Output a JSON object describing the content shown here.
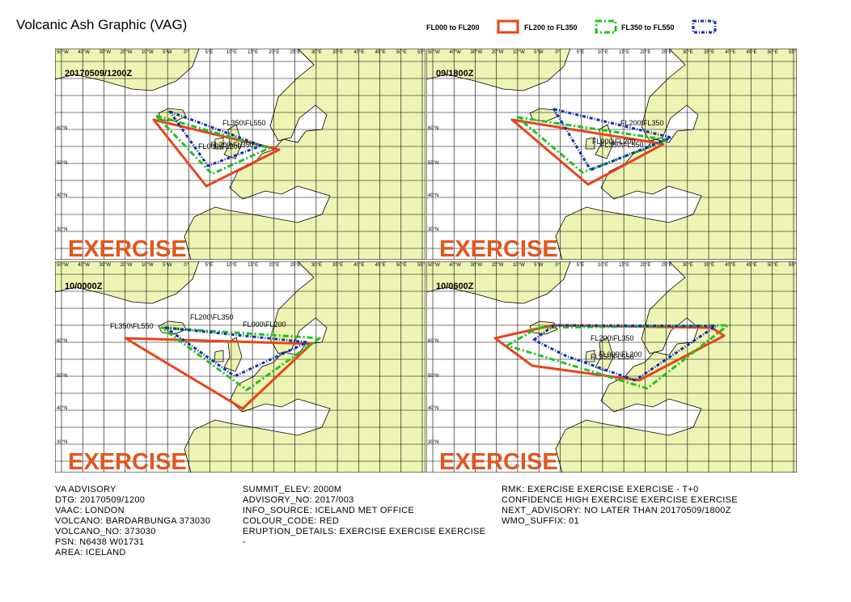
{
  "title": "Volcanic Ash Graphic (VAG)",
  "legend": [
    "FL000 to FL200",
    "FL200 to FL350",
    "FL350 to FL550"
  ],
  "exercise": "EXERCISE",
  "lon_labels": [
    "50°W",
    "40°W",
    "30°W",
    "20°W",
    "10°W",
    "5°W",
    "0°",
    "5°E",
    "10°E",
    "15°E",
    "20°E",
    "25°E",
    "30°E",
    "35°E",
    "40°E",
    "45°E",
    "50°E",
    "55°E"
  ],
  "lat_labels": [
    "60°N",
    "50°N",
    "40°N",
    "30°N"
  ],
  "panels": [
    {
      "time": "20170509/1200Z",
      "polygon_labels": [
        "FL350\\FL550",
        "FL000\\FL200",
        "FL200\\FL350"
      ]
    },
    {
      "time": "09/1800Z",
      "polygon_labels": [
        "FL200\\FL350",
        "FL000\\FL200",
        "FL350\\FL550"
      ]
    },
    {
      "time": "10/0000Z",
      "polygon_labels": [
        "FL200\\FL350",
        "FL350\\FL550",
        "FL000\\FL200"
      ]
    },
    {
      "time": "10/0600Z",
      "polygon_labels": [
        "FL200\\FL350",
        "FL350\\FL550",
        "FL000\\FL200"
      ]
    }
  ],
  "advisory": [
    [
      "VA ADVISORY",
      "DTG: 20170509/1200",
      "VAAC: LONDON",
      "VOLCANO: BARDARBUNGA 373030",
      "VOLCANO_NO: 373030",
      "PSN: N6438 W01731",
      "AREA: ICELAND"
    ],
    [
      "SUMMIT_ELEV: 2000M",
      "ADVISORY_NO: 2017/003",
      "INFO_SOURCE: ICELAND MET OFFICE",
      "COLOUR_CODE: RED",
      "ERUPTION_DETAILS: EXERCISE EXERCISE EXERCISE",
      "-"
    ],
    [
      "RMK: EXERCISE EXERCISE EXERCISE - T+0",
      "CONFIDENCE HIGH EXERCISE EXERCISE EXERCISE",
      "NEXT_ADVISORY: NO LATER THAN 20170509/1800Z",
      "WMO_SUFFIX: 01"
    ]
  ]
}
